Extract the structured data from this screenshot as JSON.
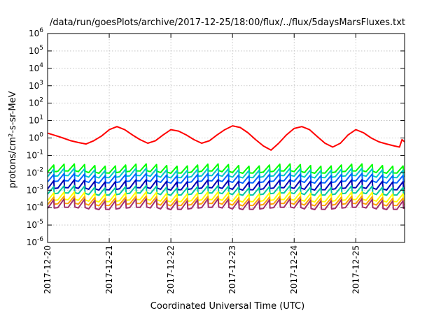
{
  "chart_data": {
    "type": "line",
    "title": "/data/run/goesPlots/archive/2017-12-25/18:00/flux/../flux/5daysMarsFluxes.txt",
    "xlabel": "Coordinated Universal Time (UTC)",
    "ylabel": "protons/cm²-s-sr-MeV",
    "y_scale": "log",
    "ylim": [
      1e-06,
      1000000.0
    ],
    "y_ticks": [
      {
        "value": 1e-06,
        "base": "10",
        "exp": "-6"
      },
      {
        "value": 1e-05,
        "base": "10",
        "exp": "-5"
      },
      {
        "value": 0.0001,
        "base": "10",
        "exp": "-4"
      },
      {
        "value": 0.001,
        "base": "10",
        "exp": "-3"
      },
      {
        "value": 0.01,
        "base": "10",
        "exp": "-2"
      },
      {
        "value": 0.1,
        "base": "10",
        "exp": "-1"
      },
      {
        "value": 1,
        "base": "10",
        "exp": "0"
      },
      {
        "value": 10,
        "base": "10",
        "exp": "1"
      },
      {
        "value": 100,
        "base": "10",
        "exp": "2"
      },
      {
        "value": 1000,
        "base": "10",
        "exp": "3"
      },
      {
        "value": 10000,
        "base": "10",
        "exp": "4"
      },
      {
        "value": 100000,
        "base": "10",
        "exp": "5"
      },
      {
        "value": 1000000,
        "base": "10",
        "exp": "6"
      }
    ],
    "x_ticks": [
      "2017-12-20",
      "2017-12-21",
      "2017-12-22",
      "2017-12-23",
      "2017-12-24",
      "2017-12-25"
    ],
    "xlim": [
      "2017-12-20T00:00",
      "2017-12-25T19:00"
    ],
    "grid": true,
    "series": [
      {
        "color": "#ff0000",
        "values": [
          [
            "2017-12-20T00:00",
            1.9
          ],
          [
            "2017-12-20T03:00",
            1.4
          ],
          [
            "2017-12-20T06:00",
            1.0
          ],
          [
            "2017-12-20T09:00",
            0.7
          ],
          [
            "2017-12-20T12:00",
            0.55
          ],
          [
            "2017-12-20T15:00",
            0.45
          ],
          [
            "2017-12-20T18:00",
            0.7
          ],
          [
            "2017-12-20T21:00",
            1.3
          ],
          [
            "2017-12-21T00:00",
            3.0
          ],
          [
            "2017-12-21T03:00",
            4.5
          ],
          [
            "2017-12-21T06:00",
            3.0
          ],
          [
            "2017-12-21T09:00",
            1.5
          ],
          [
            "2017-12-21T12:00",
            0.8
          ],
          [
            "2017-12-21T15:00",
            0.5
          ],
          [
            "2017-12-21T18:00",
            0.7
          ],
          [
            "2017-12-21T21:00",
            1.5
          ],
          [
            "2017-12-22T00:00",
            3.0
          ],
          [
            "2017-12-22T03:00",
            2.5
          ],
          [
            "2017-12-22T06:00",
            1.5
          ],
          [
            "2017-12-22T09:00",
            0.8
          ],
          [
            "2017-12-22T12:00",
            0.5
          ],
          [
            "2017-12-22T15:00",
            0.7
          ],
          [
            "2017-12-22T18:00",
            1.5
          ],
          [
            "2017-12-22T21:00",
            3.0
          ],
          [
            "2017-12-23T00:00",
            5.0
          ],
          [
            "2017-12-23T03:00",
            4.0
          ],
          [
            "2017-12-23T06:00",
            2.0
          ],
          [
            "2017-12-23T09:00",
            0.8
          ],
          [
            "2017-12-23T12:00",
            0.35
          ],
          [
            "2017-12-23T15:00",
            0.2
          ],
          [
            "2017-12-23T18:00",
            0.5
          ],
          [
            "2017-12-23T21:00",
            1.5
          ],
          [
            "2017-12-24T00:00",
            3.5
          ],
          [
            "2017-12-24T03:00",
            4.5
          ],
          [
            "2017-12-24T06:00",
            3.0
          ],
          [
            "2017-12-24T09:00",
            1.2
          ],
          [
            "2017-12-24T12:00",
            0.5
          ],
          [
            "2017-12-24T15:00",
            0.3
          ],
          [
            "2017-12-24T18:00",
            0.5
          ],
          [
            "2017-12-24T21:00",
            1.5
          ],
          [
            "2017-12-25T00:00",
            3.0
          ],
          [
            "2017-12-25T03:00",
            2.0
          ],
          [
            "2017-12-25T06:00",
            1.0
          ],
          [
            "2017-12-25T09:00",
            0.6
          ],
          [
            "2017-12-25T12:00",
            0.45
          ],
          [
            "2017-12-25T15:00",
            0.35
          ],
          [
            "2017-12-25T17:00",
            0.3
          ],
          [
            "2017-12-25T18:00",
            0.8
          ],
          [
            "2017-12-25T19:00",
            0.6
          ]
        ]
      },
      {
        "color": "#00ff00",
        "sawtooth": {
          "base": 0.011,
          "peak": 0.028
        }
      },
      {
        "color": "#00c8c8",
        "sawtooth": {
          "base": 0.006,
          "peak": 0.016
        }
      },
      {
        "color": "#0064ff",
        "sawtooth": {
          "base": 0.003,
          "peak": 0.008
        }
      },
      {
        "color": "#0000b4",
        "sawtooth": {
          "base": 0.0012,
          "peak": 0.0035
        }
      },
      {
        "color": "#00c8a0",
        "sawtooth": {
          "base": 0.0006,
          "peak": 0.0016
        }
      },
      {
        "color": "#ffff00",
        "sawtooth": {
          "base": 0.00025,
          "peak": 0.0007
        }
      },
      {
        "color": "#ffa000",
        "sawtooth": {
          "base": 0.00015,
          "peak": 0.0004
        }
      },
      {
        "color": "#a0306e",
        "sawtooth": {
          "base": 9e-05,
          "peak": 0.00028
        }
      }
    ]
  }
}
